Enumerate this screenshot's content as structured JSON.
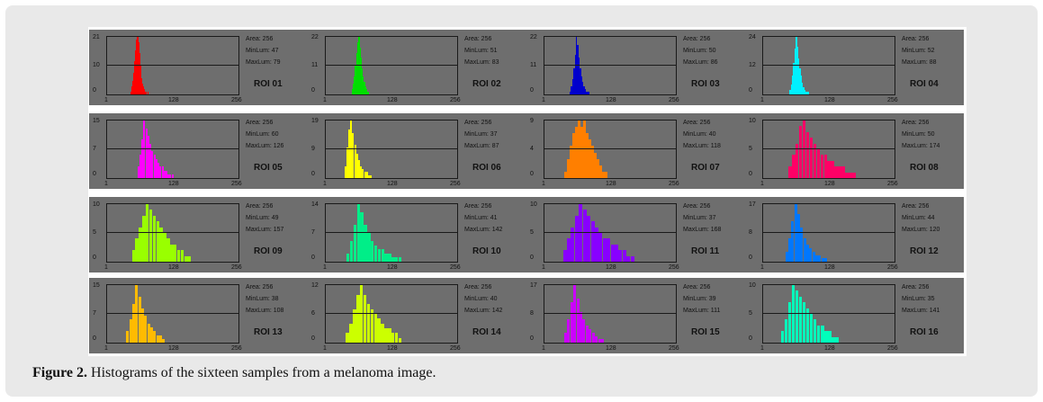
{
  "figure": {
    "caption_label": "Figure 2.",
    "caption_text": " Histograms of the sixteen samples from a melanoma image."
  },
  "chart_data": [
    {
      "type": "bar",
      "title": "ROI 01",
      "color": "#ff0000",
      "stats": {
        "area": "Area: 256",
        "minlum": "MinLum: 47",
        "maxlum": "MaxLum: 79"
      },
      "yticks": [
        "21",
        "10",
        "0"
      ],
      "xticks": [
        "1",
        "128",
        "256"
      ],
      "xlim": [
        1,
        256
      ],
      "ylim": [
        0,
        21
      ],
      "xmin": 47,
      "xmax": 79,
      "peak": 57,
      "spread": 6,
      "ymax": 21,
      "values": [
        1,
        3,
        5,
        8,
        12,
        16,
        20,
        21,
        19,
        15,
        11,
        8,
        6,
        4,
        3,
        2,
        1,
        1,
        0,
        1
      ]
    },
    {
      "type": "bar",
      "title": "ROI 02",
      "color": "#00dd00",
      "stats": {
        "area": "Area: 256",
        "minlum": "MinLum: 51",
        "maxlum": "MaxLum: 83"
      },
      "yticks": [
        "22",
        "11",
        "0"
      ],
      "xticks": [
        "1",
        "128",
        "256"
      ],
      "xlim": [
        1,
        256
      ],
      "ylim": [
        0,
        22
      ],
      "xmin": 51,
      "xmax": 83,
      "peak": 61,
      "spread": 6,
      "ymax": 22,
      "values": [
        2,
        4,
        7,
        11,
        16,
        20,
        22,
        18,
        14,
        10,
        7,
        5,
        3,
        2,
        1,
        1
      ]
    },
    {
      "type": "bar",
      "title": "ROI 03",
      "color": "#0000cc",
      "stats": {
        "area": "Area: 256",
        "minlum": "MinLum: 50",
        "maxlum": "MaxLum: 86"
      },
      "yticks": [
        "22",
        "11",
        "0"
      ],
      "xticks": [
        "1",
        "128",
        "256"
      ],
      "xlim": [
        1,
        256
      ],
      "ylim": [
        0,
        22
      ],
      "xmin": 50,
      "xmax": 86,
      "peak": 62,
      "spread": 7,
      "ymax": 22,
      "values": [
        1,
        3,
        6,
        10,
        15,
        22,
        19,
        14,
        10,
        7,
        5,
        3,
        2,
        1,
        1,
        1
      ]
    },
    {
      "type": "bar",
      "title": "ROI 04",
      "color": "#00f0ff",
      "stats": {
        "area": "Area: 256",
        "minlum": "MinLum: 52",
        "maxlum": "MaxLum: 88"
      },
      "yticks": [
        "24",
        "12",
        "0"
      ],
      "xticks": [
        "1",
        "128",
        "256"
      ],
      "xlim": [
        1,
        256
      ],
      "ylim": [
        0,
        24
      ],
      "xmin": 52,
      "xmax": 88,
      "peak": 64,
      "spread": 7,
      "ymax": 24,
      "values": [
        2,
        4,
        8,
        13,
        19,
        24,
        20,
        15,
        11,
        8,
        5,
        3,
        2,
        1,
        1,
        1
      ]
    },
    {
      "type": "bar",
      "title": "ROI 05",
      "color": "#ff00ff",
      "stats": {
        "area": "Area: 256",
        "minlum": "MinLum: 60",
        "maxlum": "MaxLum: 126"
      },
      "yticks": [
        "15",
        "7",
        "0"
      ],
      "xticks": [
        "1",
        "128",
        "256"
      ],
      "xlim": [
        1,
        256
      ],
      "ylim": [
        0,
        15
      ],
      "xmin": 60,
      "xmax": 126,
      "peak": 70,
      "spread": 14,
      "ymax": 15,
      "values": [
        3,
        6,
        10,
        15,
        13,
        11,
        9,
        7,
        6,
        5,
        4,
        3,
        3,
        2,
        2,
        1,
        1,
        1
      ]
    },
    {
      "type": "bar",
      "title": "ROI 06",
      "color": "#ffff00",
      "stats": {
        "area": "Area: 256",
        "minlum": "MinLum: 37",
        "maxlum": "MaxLum: 87"
      },
      "yticks": [
        "19",
        "9",
        "0"
      ],
      "xticks": [
        "1",
        "128",
        "256"
      ],
      "xlim": [
        1,
        256
      ],
      "ylim": [
        0,
        19
      ],
      "xmin": 37,
      "xmax": 87,
      "peak": 48,
      "spread": 9,
      "ymax": 19,
      "values": [
        4,
        10,
        16,
        19,
        15,
        11,
        8,
        6,
        4,
        3,
        2,
        2,
        1,
        1
      ]
    },
    {
      "type": "bar",
      "title": "ROI 07",
      "color": "#ff7f00",
      "stats": {
        "area": "Area: 256",
        "minlum": "MinLum: 40",
        "maxlum": "MaxLum: 118"
      },
      "yticks": [
        "9",
        "4",
        "0"
      ],
      "xticks": [
        "1",
        "128",
        "256"
      ],
      "xlim": [
        1,
        256
      ],
      "ylim": [
        0,
        9
      ],
      "xmin": 40,
      "xmax": 118,
      "peak": 75,
      "spread": 18,
      "ymax": 9,
      "values": [
        1,
        3,
        5,
        7,
        8,
        9,
        8,
        9,
        7,
        6,
        5,
        4,
        3,
        2,
        1,
        1
      ]
    },
    {
      "type": "bar",
      "title": "ROI 08",
      "color": "#ff0066",
      "stats": {
        "area": "Area: 256",
        "minlum": "MinLum: 50",
        "maxlum": "MaxLum: 174"
      },
      "yticks": [
        "10",
        "5",
        "0"
      ],
      "xticks": [
        "1",
        "128",
        "256"
      ],
      "xlim": [
        1,
        256
      ],
      "ylim": [
        0,
        10
      ],
      "xmin": 50,
      "xmax": 174,
      "peak": 80,
      "spread": 24,
      "ymax": 10,
      "values": [
        2,
        4,
        6,
        9,
        10,
        8,
        7,
        6,
        5,
        4,
        4,
        3,
        3,
        2,
        2,
        2,
        1,
        1,
        1
      ]
    },
    {
      "type": "bar",
      "title": "ROI 09",
      "color": "#99ff00",
      "stats": {
        "area": "Area: 256",
        "minlum": "MinLum: 49",
        "maxlum": "MaxLum: 157"
      },
      "yticks": [
        "10",
        "5",
        "0"
      ],
      "xticks": [
        "1",
        "128",
        "256"
      ],
      "xlim": [
        1,
        256
      ],
      "ylim": [
        0,
        10
      ],
      "xmin": 49,
      "xmax": 157,
      "peak": 80,
      "spread": 26,
      "ymax": 10,
      "values": [
        2,
        4,
        6,
        8,
        10,
        9,
        8,
        7,
        6,
        5,
        4,
        3,
        3,
        2,
        2,
        1,
        1
      ]
    },
    {
      "type": "bar",
      "title": "ROI 10",
      "color": "#00ee88",
      "stats": {
        "area": "Area: 256",
        "minlum": "MinLum: 41",
        "maxlum": "MaxLum: 142"
      },
      "yticks": [
        "14",
        "7",
        "0"
      ],
      "xticks": [
        "1",
        "128",
        "256"
      ],
      "xlim": [
        1,
        256
      ],
      "ylim": [
        0,
        14
      ],
      "xmin": 41,
      "xmax": 142,
      "peak": 70,
      "spread": 16,
      "ymax": 14,
      "values": [
        2,
        5,
        9,
        14,
        12,
        9,
        7,
        5,
        4,
        3,
        3,
        2,
        2,
        1,
        1,
        1
      ]
    },
    {
      "type": "bar",
      "title": "ROI 11",
      "color": "#8800ff",
      "stats": {
        "area": "Area: 256",
        "minlum": "MinLum: 37",
        "maxlum": "MaxLum: 168"
      },
      "yticks": [
        "10",
        "5",
        "0"
      ],
      "xticks": [
        "1",
        "128",
        "256"
      ],
      "xlim": [
        1,
        256
      ],
      "ylim": [
        0,
        10
      ],
      "xmin": 37,
      "xmax": 168,
      "peak": 75,
      "spread": 28,
      "ymax": 10,
      "values": [
        2,
        4,
        6,
        8,
        10,
        9,
        8,
        7,
        6,
        5,
        4,
        4,
        3,
        3,
        2,
        2,
        1,
        1
      ]
    },
    {
      "type": "bar",
      "title": "ROI 12",
      "color": "#0077ff",
      "stats": {
        "area": "Area: 256",
        "minlum": "MinLum: 44",
        "maxlum": "MaxLum: 120"
      },
      "yticks": [
        "17",
        "8",
        "0"
      ],
      "xticks": [
        "1",
        "128",
        "256"
      ],
      "xlim": [
        1,
        256
      ],
      "ylim": [
        0,
        17
      ],
      "xmin": 44,
      "xmax": 120,
      "peak": 60,
      "spread": 12,
      "ymax": 17,
      "values": [
        3,
        7,
        12,
        17,
        14,
        10,
        7,
        5,
        4,
        3,
        2,
        2,
        1,
        1
      ]
    },
    {
      "type": "bar",
      "title": "ROI 13",
      "color": "#ffbb00",
      "stats": {
        "area": "Area: 256",
        "minlum": "MinLum: 38",
        "maxlum": "MaxLum: 108"
      },
      "yticks": [
        "15",
        "7",
        "0"
      ],
      "xticks": [
        "1",
        "128",
        "256"
      ],
      "xlim": [
        1,
        256
      ],
      "ylim": [
        0,
        15
      ],
      "xmin": 38,
      "xmax": 108,
      "peak": 60,
      "spread": 13,
      "ymax": 15,
      "values": [
        3,
        6,
        10,
        15,
        12,
        9,
        7,
        5,
        4,
        3,
        2,
        2,
        1
      ]
    },
    {
      "type": "bar",
      "title": "ROI 14",
      "color": "#ccff00",
      "stats": {
        "area": "Area: 256",
        "minlum": "MinLum: 40",
        "maxlum": "MaxLum: 142"
      },
      "yticks": [
        "12",
        "6",
        "0"
      ],
      "xticks": [
        "1",
        "128",
        "256"
      ],
      "xlim": [
        1,
        256
      ],
      "ylim": [
        0,
        12
      ],
      "xmin": 40,
      "xmax": 142,
      "peak": 72,
      "spread": 22,
      "ymax": 12,
      "values": [
        2,
        4,
        7,
        10,
        12,
        10,
        8,
        7,
        6,
        5,
        4,
        3,
        3,
        2,
        2,
        1
      ]
    },
    {
      "type": "bar",
      "title": "ROI 15",
      "color": "#cc00ff",
      "stats": {
        "area": "Area: 256",
        "minlum": "MinLum: 39",
        "maxlum": "MaxLum: 111"
      },
      "yticks": [
        "17",
        "8",
        "0"
      ],
      "xticks": [
        "1",
        "128",
        "256"
      ],
      "xlim": [
        1,
        256
      ],
      "ylim": [
        0,
        17
      ],
      "xmin": 39,
      "xmax": 111,
      "peak": 62,
      "spread": 12,
      "ymax": 17,
      "values": [
        3,
        7,
        12,
        17,
        13,
        9,
        7,
        5,
        4,
        3,
        2,
        1,
        1
      ]
    },
    {
      "type": "bar",
      "title": "ROI 16",
      "color": "#00ffbb",
      "stats": {
        "area": "Area: 256",
        "minlum": "MinLum: 35",
        "maxlum": "MaxLum: 141"
      },
      "yticks": [
        "10",
        "5",
        "0"
      ],
      "xticks": [
        "1",
        "128",
        "256"
      ],
      "xlim": [
        1,
        256
      ],
      "ylim": [
        0,
        10
      ],
      "xmin": 35,
      "xmax": 141,
      "peak": 75,
      "spread": 20,
      "ymax": 10,
      "values": [
        2,
        4,
        7,
        10,
        9,
        8,
        7,
        6,
        5,
        4,
        3,
        3,
        2,
        2,
        1,
        1
      ]
    }
  ]
}
